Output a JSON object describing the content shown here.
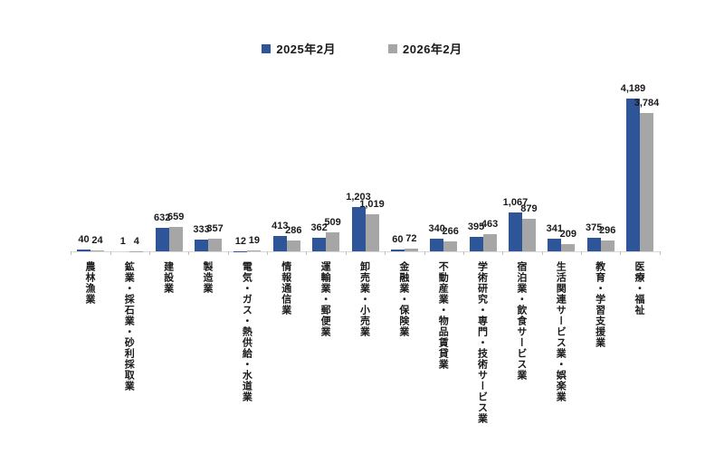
{
  "legend": {
    "items": [
      {
        "label": "2025年2月",
        "color": "#2E5597"
      },
      {
        "label": "2026年2月",
        "color": "#A6A6A6"
      }
    ]
  },
  "chart_data": {
    "type": "bar",
    "title": "",
    "legend_position": "top",
    "grid": false,
    "value_labels": "outside-end",
    "xlabel": "",
    "ylabel": "",
    "ylim": [
      0,
      4500
    ],
    "colors": {
      "series_2025": "#2E5597",
      "series_2026": "#A6A6A6",
      "axis": "#D9D9D9",
      "tick": "#BFBFBF",
      "text": "#1A1A1A"
    },
    "categories": [
      "農林漁業",
      "鉱業・採石業・砂利採取業",
      "建設業",
      "製造業",
      "電気・ガス・熱供給・水道業",
      "情報通信業",
      "運輸業・郵便業",
      "卸売業・小売業",
      "金融業・保険業",
      "不動産業・物品賃貸業",
      "学術研究・専門・技術サービス業",
      "宿泊業・飲食サービス業",
      "生活関連サービス業・娯楽業",
      "教育・学習支援業",
      "医療・福祉"
    ],
    "series": [
      {
        "name": "2025年2月",
        "color": "#2E5597",
        "values": [
          40,
          1,
          632,
          333,
          12,
          413,
          362,
          1203,
          60,
          340,
          395,
          1067,
          341,
          375,
          4189
        ],
        "labels": [
          "40",
          "1",
          "632",
          "333",
          "12",
          "413",
          "362",
          "1,203",
          "60",
          "340",
          "395",
          "1,067",
          "341",
          "375",
          "4,189"
        ]
      },
      {
        "name": "2026年2月",
        "color": "#A6A6A6",
        "values": [
          24,
          4,
          659,
          357,
          19,
          286,
          509,
          1019,
          72,
          266,
          463,
          879,
          209,
          296,
          3784
        ],
        "labels": [
          "24",
          "4",
          "659",
          "357",
          "19",
          "286",
          "509",
          "1,019",
          "72",
          "266",
          "463",
          "879",
          "209",
          "296",
          "3,784"
        ]
      }
    ]
  }
}
